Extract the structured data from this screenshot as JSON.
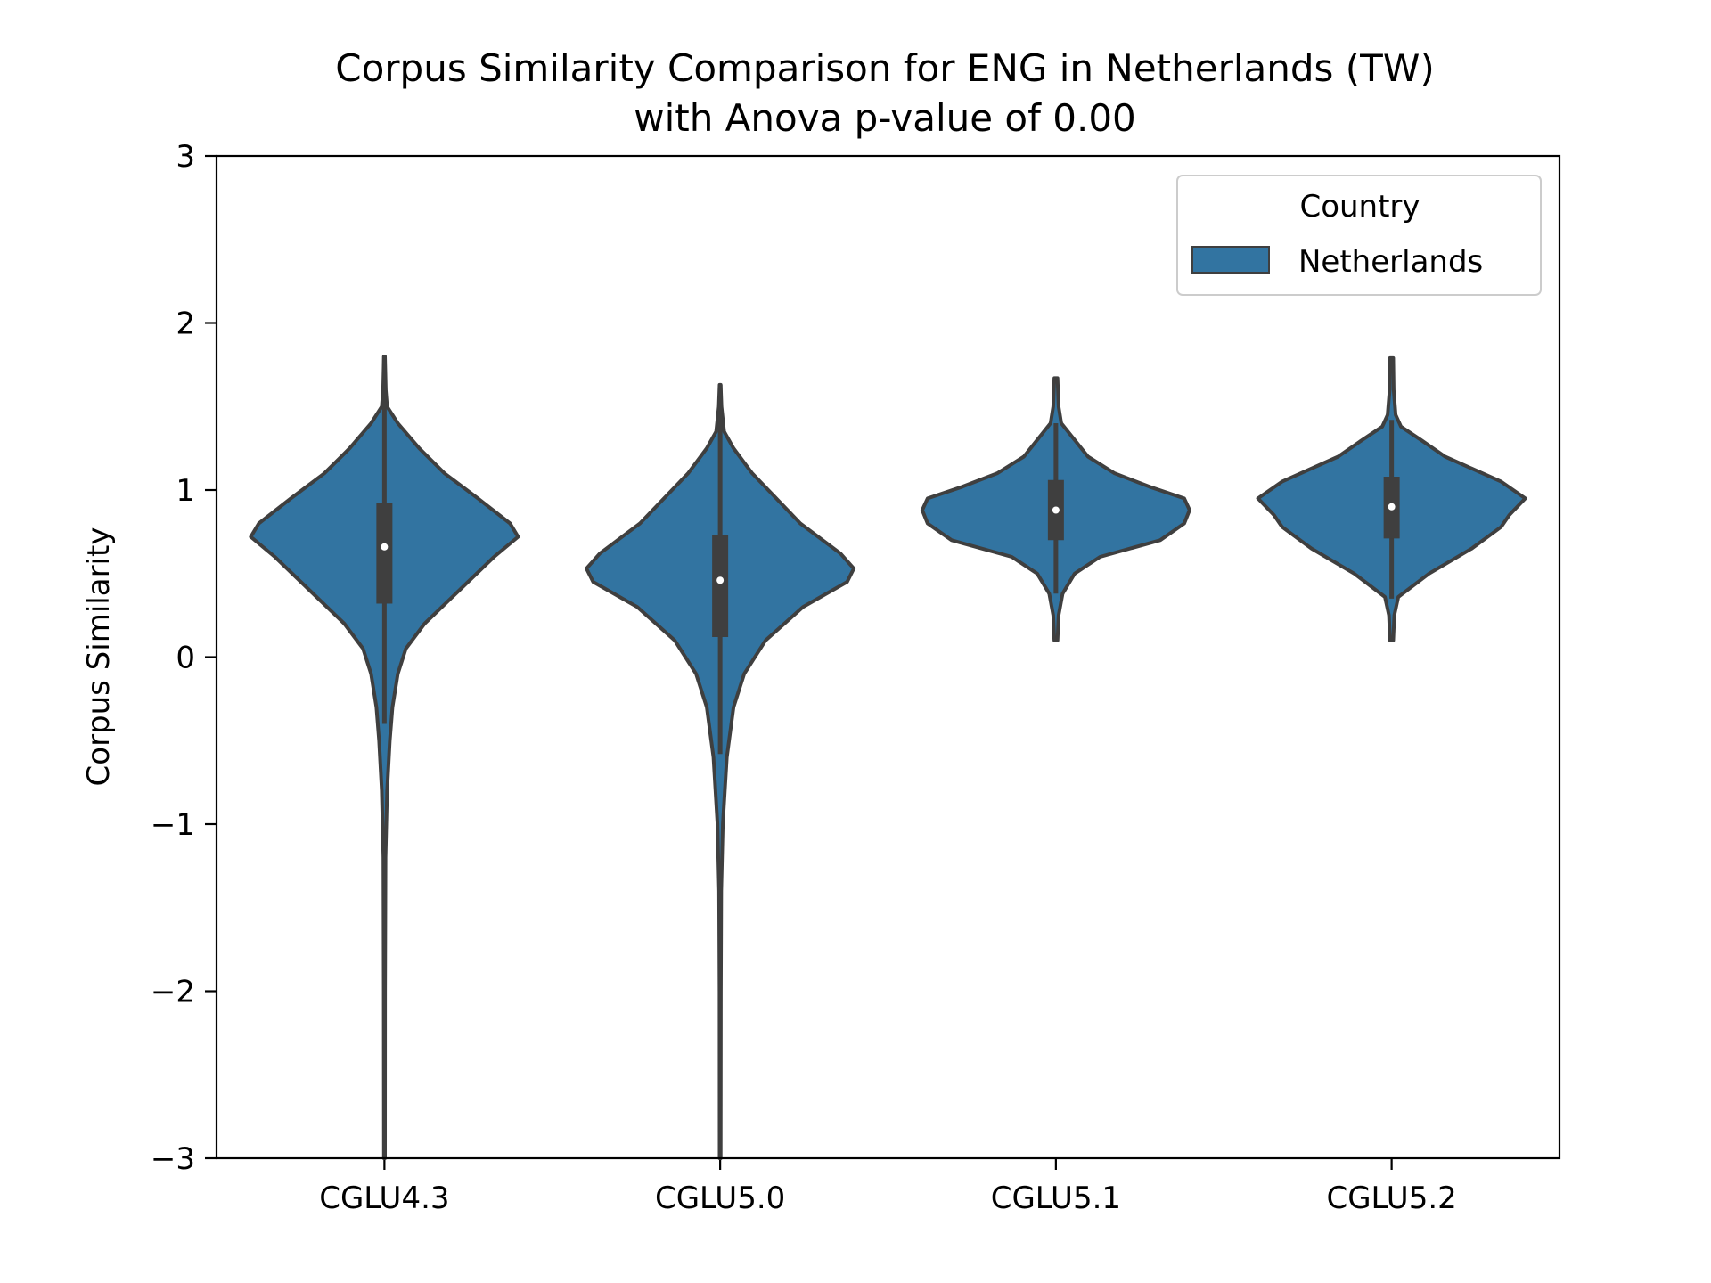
{
  "chart_data": {
    "type": "violin",
    "title_line1": "Corpus Similarity Comparison for ENG in Netherlands (TW)",
    "title_line2": "with Anova p-value of 0.00",
    "xlabel": "",
    "ylabel": "Corpus Similarity",
    "ylim": [
      -3,
      3
    ],
    "yticks": [
      -3,
      -2,
      -1,
      0,
      1,
      2,
      3
    ],
    "ytick_labels": [
      "−3",
      "−2",
      "−1",
      "0",
      "1",
      "2",
      "3"
    ],
    "categories": [
      "CGLU4.3",
      "CGLU5.0",
      "CGLU5.1",
      "CGLU5.2"
    ],
    "legend": {
      "title": "Country",
      "position": "top-right",
      "entries": [
        {
          "label": "Netherlands",
          "color": "#3274a1"
        }
      ]
    },
    "colors": {
      "violin_fill": "#3274a1",
      "violin_edge": "#3f3f3f",
      "box": "#3f3f3f",
      "median_dot": "#ffffff"
    },
    "grid": false,
    "series": [
      {
        "name": "Netherlands",
        "violins": [
          {
            "category": "CGLU4.3",
            "min": -3.0,
            "max": 1.8,
            "q1": 0.32,
            "median": 0.66,
            "q3": 0.92,
            "whisker_low": -0.4,
            "whisker_high": 1.8,
            "density": [
              [
                -3.0,
                0.004
              ],
              [
                -2.0,
                0.005
              ],
              [
                -1.2,
                0.008
              ],
              [
                -0.8,
                0.02
              ],
              [
                -0.5,
                0.04
              ],
              [
                -0.3,
                0.06
              ],
              [
                -0.1,
                0.1
              ],
              [
                0.05,
                0.16
              ],
              [
                0.2,
                0.3
              ],
              [
                0.4,
                0.56
              ],
              [
                0.6,
                0.82
              ],
              [
                0.72,
                1.0
              ],
              [
                0.8,
                0.94
              ],
              [
                0.95,
                0.7
              ],
              [
                1.1,
                0.45
              ],
              [
                1.25,
                0.26
              ],
              [
                1.4,
                0.1
              ],
              [
                1.5,
                0.02
              ],
              [
                1.6,
                0.01
              ],
              [
                1.8,
                0.004
              ]
            ]
          },
          {
            "category": "CGLU5.0",
            "min": -3.0,
            "max": 1.63,
            "q1": 0.12,
            "median": 0.46,
            "q3": 0.73,
            "whisker_low": -0.58,
            "whisker_high": 1.63,
            "density": [
              [
                -3.0,
                0.004
              ],
              [
                -2.0,
                0.005
              ],
              [
                -1.4,
                0.008
              ],
              [
                -1.0,
                0.02
              ],
              [
                -0.6,
                0.05
              ],
              [
                -0.3,
                0.1
              ],
              [
                -0.1,
                0.18
              ],
              [
                0.1,
                0.34
              ],
              [
                0.3,
                0.62
              ],
              [
                0.45,
                0.95
              ],
              [
                0.53,
                1.0
              ],
              [
                0.62,
                0.9
              ],
              [
                0.8,
                0.6
              ],
              [
                0.95,
                0.42
              ],
              [
                1.1,
                0.24
              ],
              [
                1.25,
                0.1
              ],
              [
                1.35,
                0.03
              ],
              [
                1.5,
                0.01
              ],
              [
                1.63,
                0.004
              ]
            ]
          },
          {
            "category": "CGLU5.1",
            "min": 0.1,
            "max": 1.67,
            "q1": 0.7,
            "median": 0.88,
            "q3": 1.06,
            "whisker_low": 0.38,
            "whisker_high": 1.4,
            "density": [
              [
                0.1,
                0.012
              ],
              [
                0.25,
                0.02
              ],
              [
                0.38,
                0.05
              ],
              [
                0.5,
                0.14
              ],
              [
                0.6,
                0.33
              ],
              [
                0.7,
                0.78
              ],
              [
                0.8,
                0.96
              ],
              [
                0.88,
                1.0
              ],
              [
                0.95,
                0.96
              ],
              [
                1.02,
                0.7
              ],
              [
                1.1,
                0.44
              ],
              [
                1.2,
                0.24
              ],
              [
                1.3,
                0.14
              ],
              [
                1.4,
                0.04
              ],
              [
                1.5,
                0.02
              ],
              [
                1.67,
                0.012
              ]
            ]
          },
          {
            "category": "CGLU5.2",
            "min": 0.1,
            "max": 1.79,
            "q1": 0.71,
            "median": 0.9,
            "q3": 1.08,
            "whisker_low": 0.35,
            "whisker_high": 1.42,
            "density": [
              [
                0.1,
                0.012
              ],
              [
                0.25,
                0.02
              ],
              [
                0.36,
                0.05
              ],
              [
                0.5,
                0.28
              ],
              [
                0.65,
                0.6
              ],
              [
                0.78,
                0.82
              ],
              [
                0.85,
                0.88
              ],
              [
                0.95,
                1.0
              ],
              [
                1.05,
                0.82
              ],
              [
                1.2,
                0.4
              ],
              [
                1.3,
                0.22
              ],
              [
                1.38,
                0.07
              ],
              [
                1.45,
                0.03
              ],
              [
                1.6,
                0.015
              ],
              [
                1.79,
                0.012
              ]
            ]
          }
        ]
      }
    ]
  }
}
